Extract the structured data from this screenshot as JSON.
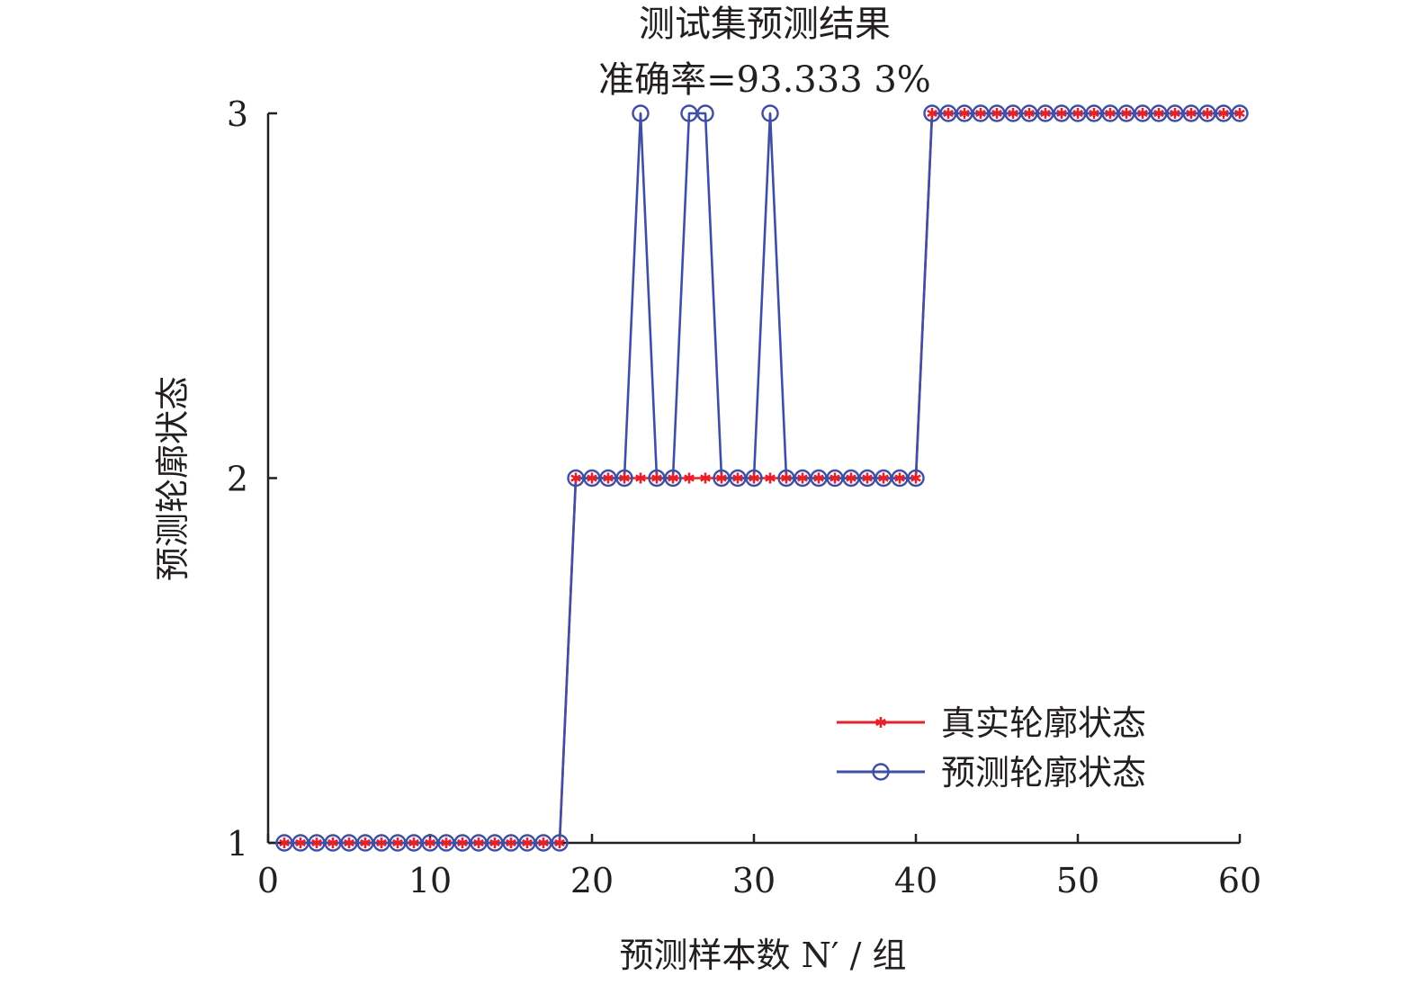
{
  "chart_data": {
    "type": "line",
    "title": "测试集预测结果",
    "subtitle": "准确率=93.333 3%",
    "xlabel": "预测样本数 N′ / 组",
    "ylabel": "预测轮廓状态",
    "xlim": [
      0,
      60
    ],
    "ylim": [
      1,
      3
    ],
    "xticks": [
      "0",
      "10",
      "20",
      "30",
      "40",
      "50",
      "60"
    ],
    "yticks": [
      "1",
      "2",
      "3"
    ],
    "grid": false,
    "legend": "bottom-right",
    "series": [
      {
        "name": "真实轮廓状态",
        "color": "#e8202a",
        "marker": "asterisk",
        "x": [
          1,
          2,
          3,
          4,
          5,
          6,
          7,
          8,
          9,
          10,
          11,
          12,
          13,
          14,
          15,
          16,
          17,
          18,
          19,
          20,
          21,
          22,
          23,
          24,
          25,
          26,
          27,
          28,
          29,
          30,
          31,
          32,
          33,
          34,
          35,
          36,
          37,
          38,
          39,
          40,
          41,
          42,
          43,
          44,
          45,
          46,
          47,
          48,
          49,
          50,
          51,
          52,
          53,
          54,
          55,
          56,
          57,
          58,
          59,
          60
        ],
        "values": [
          1,
          1,
          1,
          1,
          1,
          1,
          1,
          1,
          1,
          1,
          1,
          1,
          1,
          1,
          1,
          1,
          1,
          1,
          2,
          2,
          2,
          2,
          2,
          2,
          2,
          2,
          2,
          2,
          2,
          2,
          2,
          2,
          2,
          2,
          2,
          2,
          2,
          2,
          2,
          2,
          3,
          3,
          3,
          3,
          3,
          3,
          3,
          3,
          3,
          3,
          3,
          3,
          3,
          3,
          3,
          3,
          3,
          3,
          3,
          3
        ]
      },
      {
        "name": "预测轮廓状态",
        "color": "#3f4fa3",
        "marker": "circle",
        "x": [
          1,
          2,
          3,
          4,
          5,
          6,
          7,
          8,
          9,
          10,
          11,
          12,
          13,
          14,
          15,
          16,
          17,
          18,
          19,
          20,
          21,
          22,
          23,
          24,
          25,
          26,
          27,
          28,
          29,
          30,
          31,
          32,
          33,
          34,
          35,
          36,
          37,
          38,
          39,
          40,
          41,
          42,
          43,
          44,
          45,
          46,
          47,
          48,
          49,
          50,
          51,
          52,
          53,
          54,
          55,
          56,
          57,
          58,
          59,
          60
        ],
        "values": [
          1,
          1,
          1,
          1,
          1,
          1,
          1,
          1,
          1,
          1,
          1,
          1,
          1,
          1,
          1,
          1,
          1,
          1,
          2,
          2,
          2,
          2,
          3,
          2,
          2,
          3,
          3,
          2,
          2,
          2,
          3,
          2,
          2,
          2,
          2,
          2,
          2,
          2,
          2,
          2,
          3,
          3,
          3,
          3,
          3,
          3,
          3,
          3,
          3,
          3,
          3,
          3,
          3,
          3,
          3,
          3,
          3,
          3,
          3,
          3
        ]
      }
    ]
  }
}
